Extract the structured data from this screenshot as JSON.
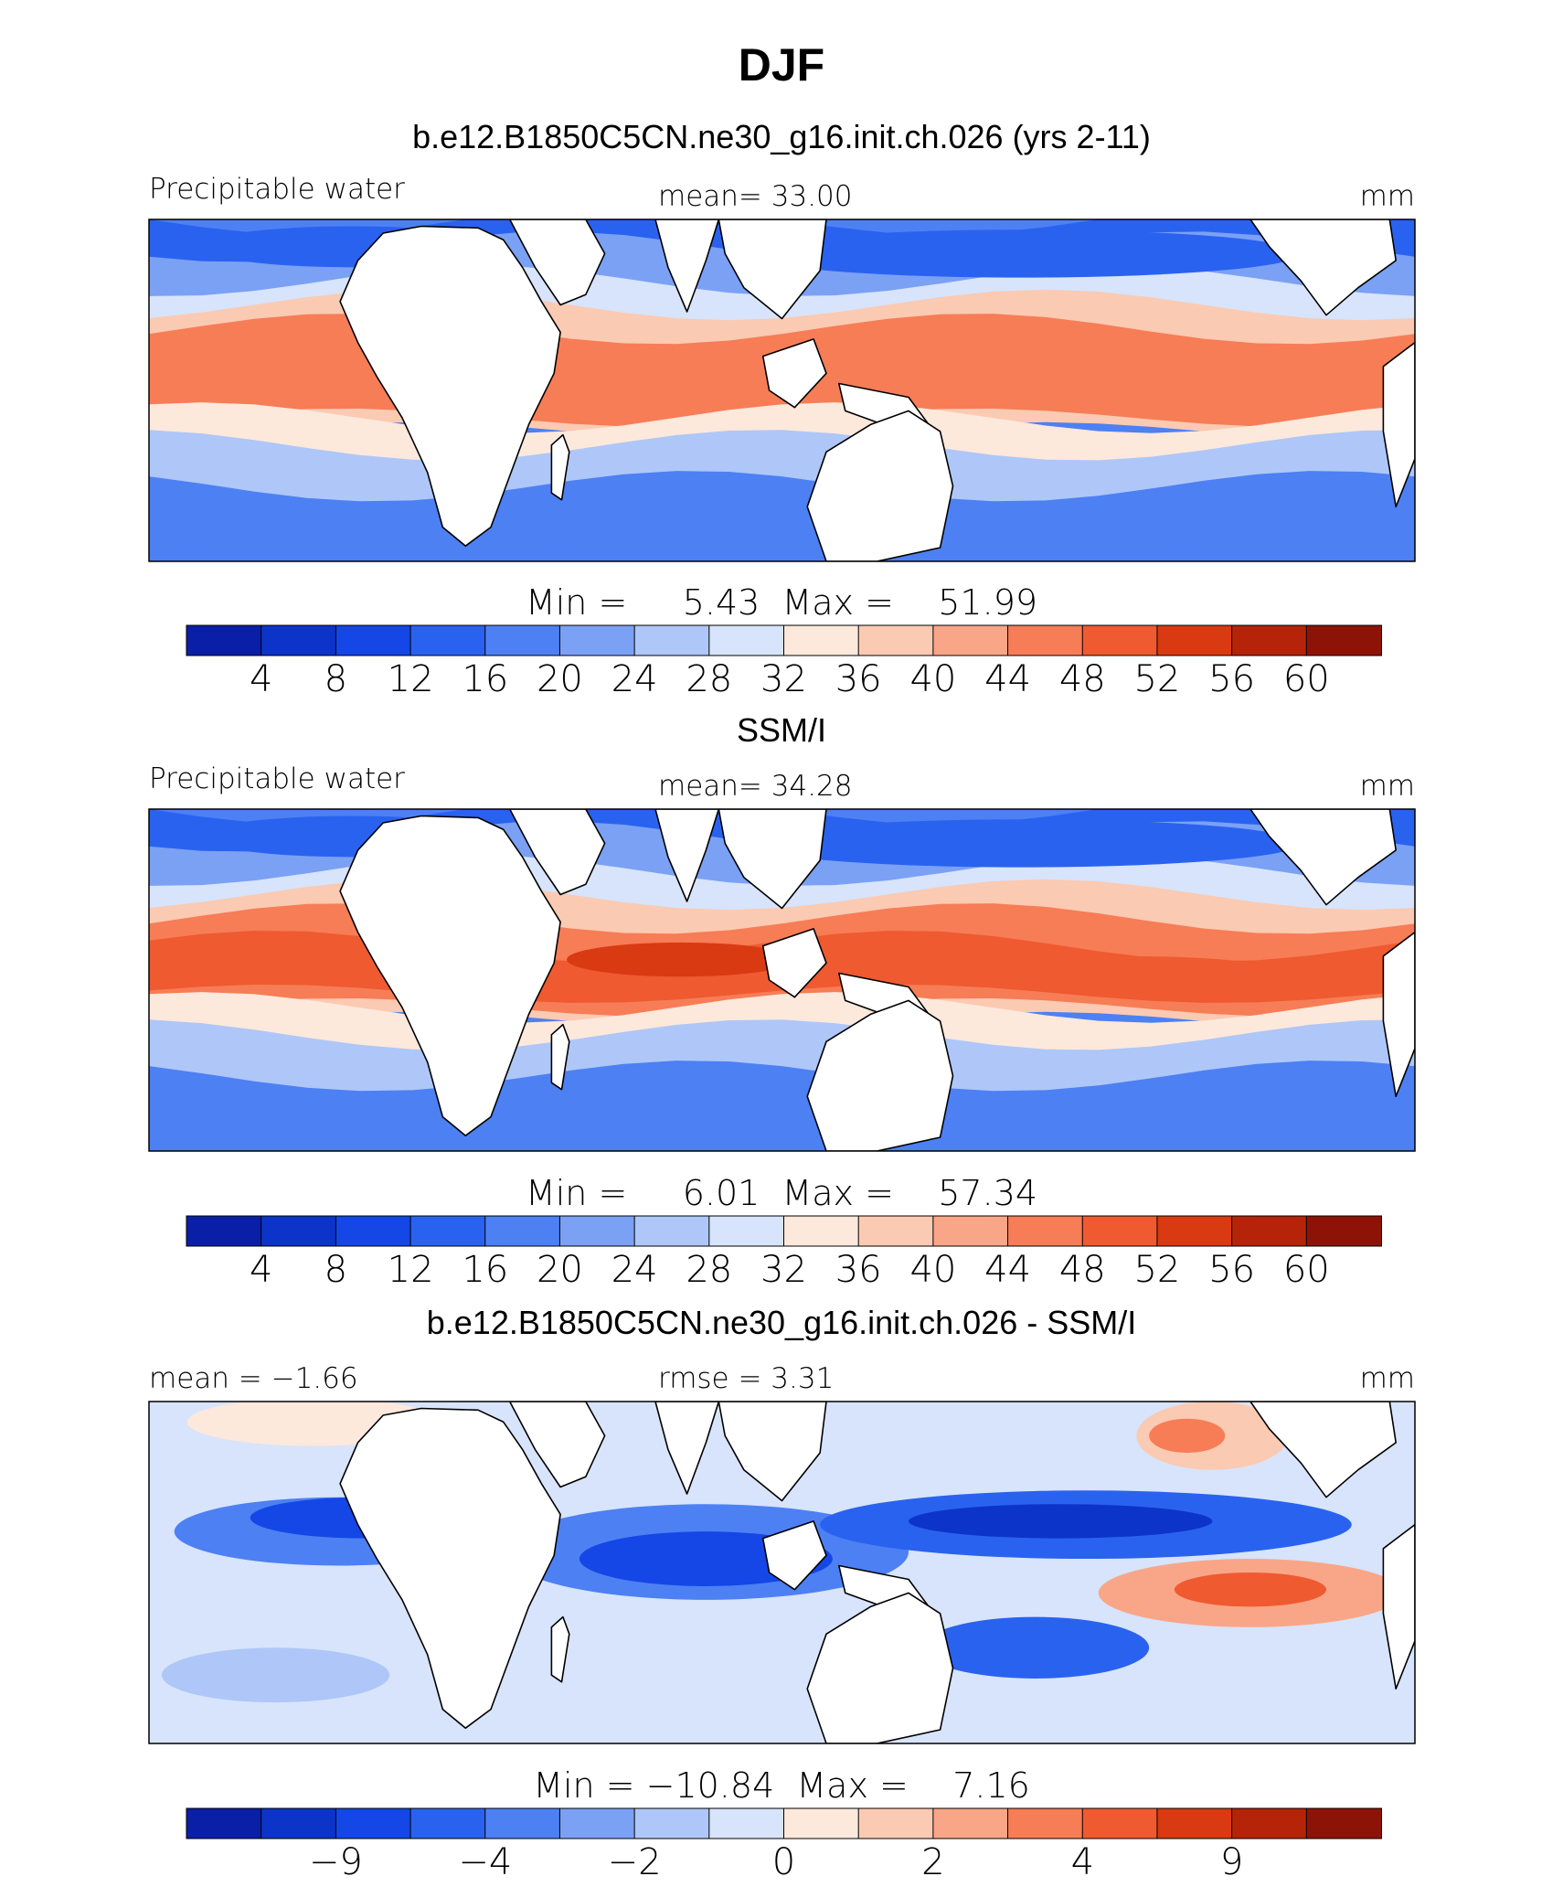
{
  "page": {
    "title": "DJF"
  },
  "colors": {
    "scale": [
      "#0a1fa8",
      "#0d34c9",
      "#1447e6",
      "#2a62f0",
      "#4d80f3",
      "#7ba1f5",
      "#aec7f8",
      "#d7e4fb",
      "#fde8dc",
      "#fbcab2",
      "#f9a688",
      "#f67d56",
      "#ef5a30",
      "#d93a12",
      "#b52409",
      "#8e1307"
    ],
    "land": "#ffffff",
    "coast": "#000000"
  },
  "chart_data": [
    {
      "type": "heatmap",
      "panel": "model",
      "title": "b.e12.B1850C5CN.ne30_g16.init.ch.026 (yrs 2-11)",
      "left_label": "Precipitable water",
      "center_label": "mean=  33.00",
      "units": "mm",
      "stats": "Min =     5.43  Max =    51.99",
      "colorbar": {
        "levels": [
          "4",
          "8",
          "12",
          "16",
          "20",
          "24",
          "28",
          "32",
          "36",
          "40",
          "44",
          "48",
          "52",
          "56",
          "60"
        ]
      }
    },
    {
      "type": "heatmap",
      "panel": "observations",
      "title": "SSM/I",
      "left_label": "Precipitable water",
      "center_label": "mean=  34.28",
      "units": "mm",
      "stats": "Min =     6.01  Max =    57.34",
      "colorbar": {
        "levels": [
          "4",
          "8",
          "12",
          "16",
          "20",
          "24",
          "28",
          "32",
          "36",
          "40",
          "44",
          "48",
          "52",
          "56",
          "60"
        ]
      }
    },
    {
      "type": "heatmap",
      "panel": "difference",
      "title": "b.e12.B1850C5CN.ne30_g16.init.ch.026 - SSM/I",
      "left_label": "mean =  −1.66",
      "center_label": "rmse =     3.31",
      "units": "mm",
      "stats": "Min = −10.84  Max =    7.16",
      "colorbar": {
        "levels": [
          "−9",
          "−4",
          "−2",
          "0",
          "2",
          "4",
          "9"
        ]
      }
    }
  ]
}
